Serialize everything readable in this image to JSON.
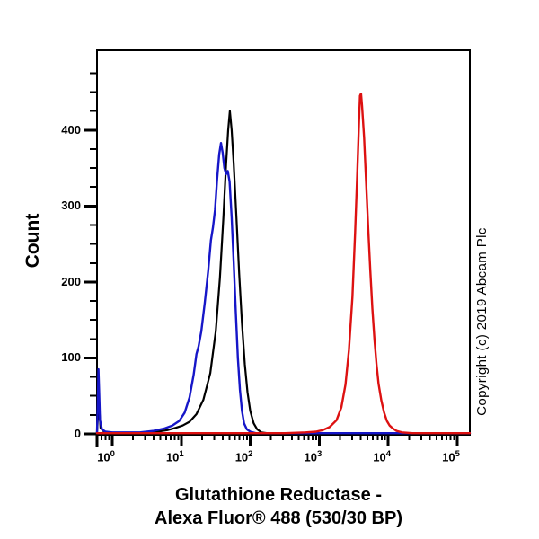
{
  "figure": {
    "copyright": "Copyright (c) 2019 Abcam Plc",
    "background_color": "#ffffff",
    "frame_color": "#000000"
  },
  "chart_data": {
    "type": "line",
    "subtype": "flow-cytometry-histogram-overlay",
    "title": "Glutathione Reductase - Alexa Fluor® 488 (530/30 BP)",
    "title_lines": [
      "Glutathione Reductase -",
      "Alexa Fluor® 488 (530/30 BP)"
    ],
    "xlabel": "",
    "ylabel": "Count",
    "x_scale": "log10",
    "xlim_log10": [
      -0.2214,
      5.1823
    ],
    "ylim": [
      0,
      505
    ],
    "x_major_tick_base": "10",
    "x_major_tick_exponents": [
      0,
      1,
      2,
      3,
      4,
      5
    ],
    "x_log_minor_ticks": true,
    "y_major_ticks": [
      0,
      100,
      200,
      300,
      400
    ],
    "y_minor_tick_step": 25,
    "grid": "off",
    "legend": "none",
    "series": [
      {
        "id": "black",
        "color": "#000000",
        "stroke_width": 2.2,
        "peak_log10_x": 1.705,
        "peak_count": 425,
        "points": [
          [
            -0.2214,
            2
          ],
          [
            -0.21,
            20
          ],
          [
            -0.198,
            58
          ],
          [
            -0.186,
            30
          ],
          [
            -0.17,
            8
          ],
          [
            -0.12,
            3
          ],
          [
            -0.05,
            2
          ],
          [
            0.1,
            1
          ],
          [
            0.3,
            1
          ],
          [
            0.5,
            2
          ],
          [
            0.65,
            3
          ],
          [
            0.8,
            5
          ],
          [
            0.92,
            8
          ],
          [
            1.02,
            11
          ],
          [
            1.12,
            16
          ],
          [
            1.22,
            26
          ],
          [
            1.32,
            45
          ],
          [
            1.42,
            80
          ],
          [
            1.5,
            135
          ],
          [
            1.56,
            205
          ],
          [
            1.61,
            285
          ],
          [
            1.65,
            355
          ],
          [
            1.68,
            400
          ],
          [
            1.705,
            425
          ],
          [
            1.73,
            400
          ],
          [
            1.76,
            355
          ],
          [
            1.8,
            285
          ],
          [
            1.84,
            210
          ],
          [
            1.88,
            145
          ],
          [
            1.92,
            92
          ],
          [
            1.96,
            55
          ],
          [
            2.0,
            30
          ],
          [
            2.05,
            14
          ],
          [
            2.1,
            6
          ],
          [
            2.16,
            2
          ],
          [
            2.25,
            1
          ],
          [
            2.6,
            1
          ],
          [
            3.2,
            1
          ],
          [
            4.0,
            1
          ],
          [
            4.8,
            1
          ],
          [
            5.182,
            1
          ]
        ]
      },
      {
        "id": "blue",
        "color": "#1616c8",
        "stroke_width": 2.4,
        "peak_log10_x": 1.575,
        "peak_count": 383,
        "points": [
          [
            -0.2214,
            2
          ],
          [
            -0.21,
            40
          ],
          [
            -0.2,
            85
          ],
          [
            -0.19,
            55
          ],
          [
            -0.178,
            18
          ],
          [
            -0.15,
            6
          ],
          [
            -0.1,
            3
          ],
          [
            0.0,
            2
          ],
          [
            0.2,
            2
          ],
          [
            0.4,
            2
          ],
          [
            0.6,
            4
          ],
          [
            0.75,
            7
          ],
          [
            0.87,
            11
          ],
          [
            0.97,
            17
          ],
          [
            1.05,
            28
          ],
          [
            1.12,
            48
          ],
          [
            1.18,
            78
          ],
          [
            1.22,
            105
          ],
          [
            1.25,
            115
          ],
          [
            1.29,
            135
          ],
          [
            1.34,
            172
          ],
          [
            1.39,
            215
          ],
          [
            1.43,
            255
          ],
          [
            1.46,
            272
          ],
          [
            1.49,
            295
          ],
          [
            1.52,
            335
          ],
          [
            1.55,
            368
          ],
          [
            1.575,
            383
          ],
          [
            1.6,
            370
          ],
          [
            1.625,
            350
          ],
          [
            1.65,
            342
          ],
          [
            1.675,
            346
          ],
          [
            1.7,
            332
          ],
          [
            1.73,
            285
          ],
          [
            1.76,
            225
          ],
          [
            1.79,
            160
          ],
          [
            1.82,
            100
          ],
          [
            1.85,
            58
          ],
          [
            1.88,
            30
          ],
          [
            1.91,
            14
          ],
          [
            1.95,
            6
          ],
          [
            2.0,
            3
          ],
          [
            2.08,
            1
          ],
          [
            2.3,
            1
          ],
          [
            2.8,
            1
          ],
          [
            3.5,
            1
          ],
          [
            4.5,
            1
          ],
          [
            5.182,
            1
          ]
        ]
      },
      {
        "id": "red",
        "color": "#dd1111",
        "stroke_width": 2.4,
        "peak_log10_x": 3.6,
        "peak_count": 448,
        "points": [
          [
            -0.2214,
            1
          ],
          [
            0.3,
            1
          ],
          [
            0.9,
            1
          ],
          [
            1.5,
            1
          ],
          [
            2.0,
            1
          ],
          [
            2.5,
            1
          ],
          [
            2.8,
            2
          ],
          [
            2.95,
            3
          ],
          [
            3.05,
            5
          ],
          [
            3.15,
            9
          ],
          [
            3.25,
            18
          ],
          [
            3.32,
            35
          ],
          [
            3.38,
            65
          ],
          [
            3.43,
            110
          ],
          [
            3.48,
            180
          ],
          [
            3.52,
            265
          ],
          [
            3.55,
            340
          ],
          [
            3.575,
            410
          ],
          [
            3.59,
            445
          ],
          [
            3.605,
            448
          ],
          [
            3.62,
            432
          ],
          [
            3.65,
            390
          ],
          [
            3.68,
            330
          ],
          [
            3.71,
            270
          ],
          [
            3.74,
            215
          ],
          [
            3.77,
            165
          ],
          [
            3.8,
            125
          ],
          [
            3.83,
            92
          ],
          [
            3.86,
            66
          ],
          [
            3.9,
            44
          ],
          [
            3.94,
            28
          ],
          [
            3.98,
            17
          ],
          [
            4.02,
            11
          ],
          [
            4.07,
            7
          ],
          [
            4.12,
            4
          ],
          [
            4.2,
            2
          ],
          [
            4.35,
            1
          ],
          [
            4.7,
            1
          ],
          [
            5.182,
            1
          ]
        ]
      }
    ]
  }
}
